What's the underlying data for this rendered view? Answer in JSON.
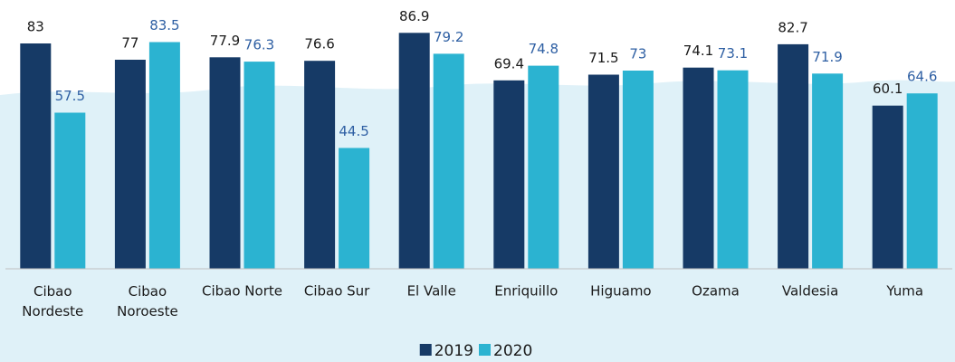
{
  "chart_data": {
    "type": "bar",
    "categories": [
      "Cibao Nordeste",
      "Cibao Noroeste",
      "Cibao Norte",
      "Cibao Sur",
      "El Valle",
      "Enriquillo",
      "Higuamo",
      "Ozama",
      "Valdesia",
      "Yuma"
    ],
    "series": [
      {
        "name": "2019",
        "color": "#163a66",
        "values": [
          83,
          77,
          77.9,
          76.6,
          86.9,
          69.4,
          71.5,
          74.1,
          82.7,
          60.1
        ]
      },
      {
        "name": "2020",
        "color": "#2bb3d1",
        "values": [
          57.5,
          83.5,
          76.3,
          44.5,
          79.2,
          74.8,
          73,
          73.1,
          71.9,
          64.6
        ]
      }
    ],
    "ylim": [
      0,
      98
    ],
    "legend": "bottom"
  }
}
